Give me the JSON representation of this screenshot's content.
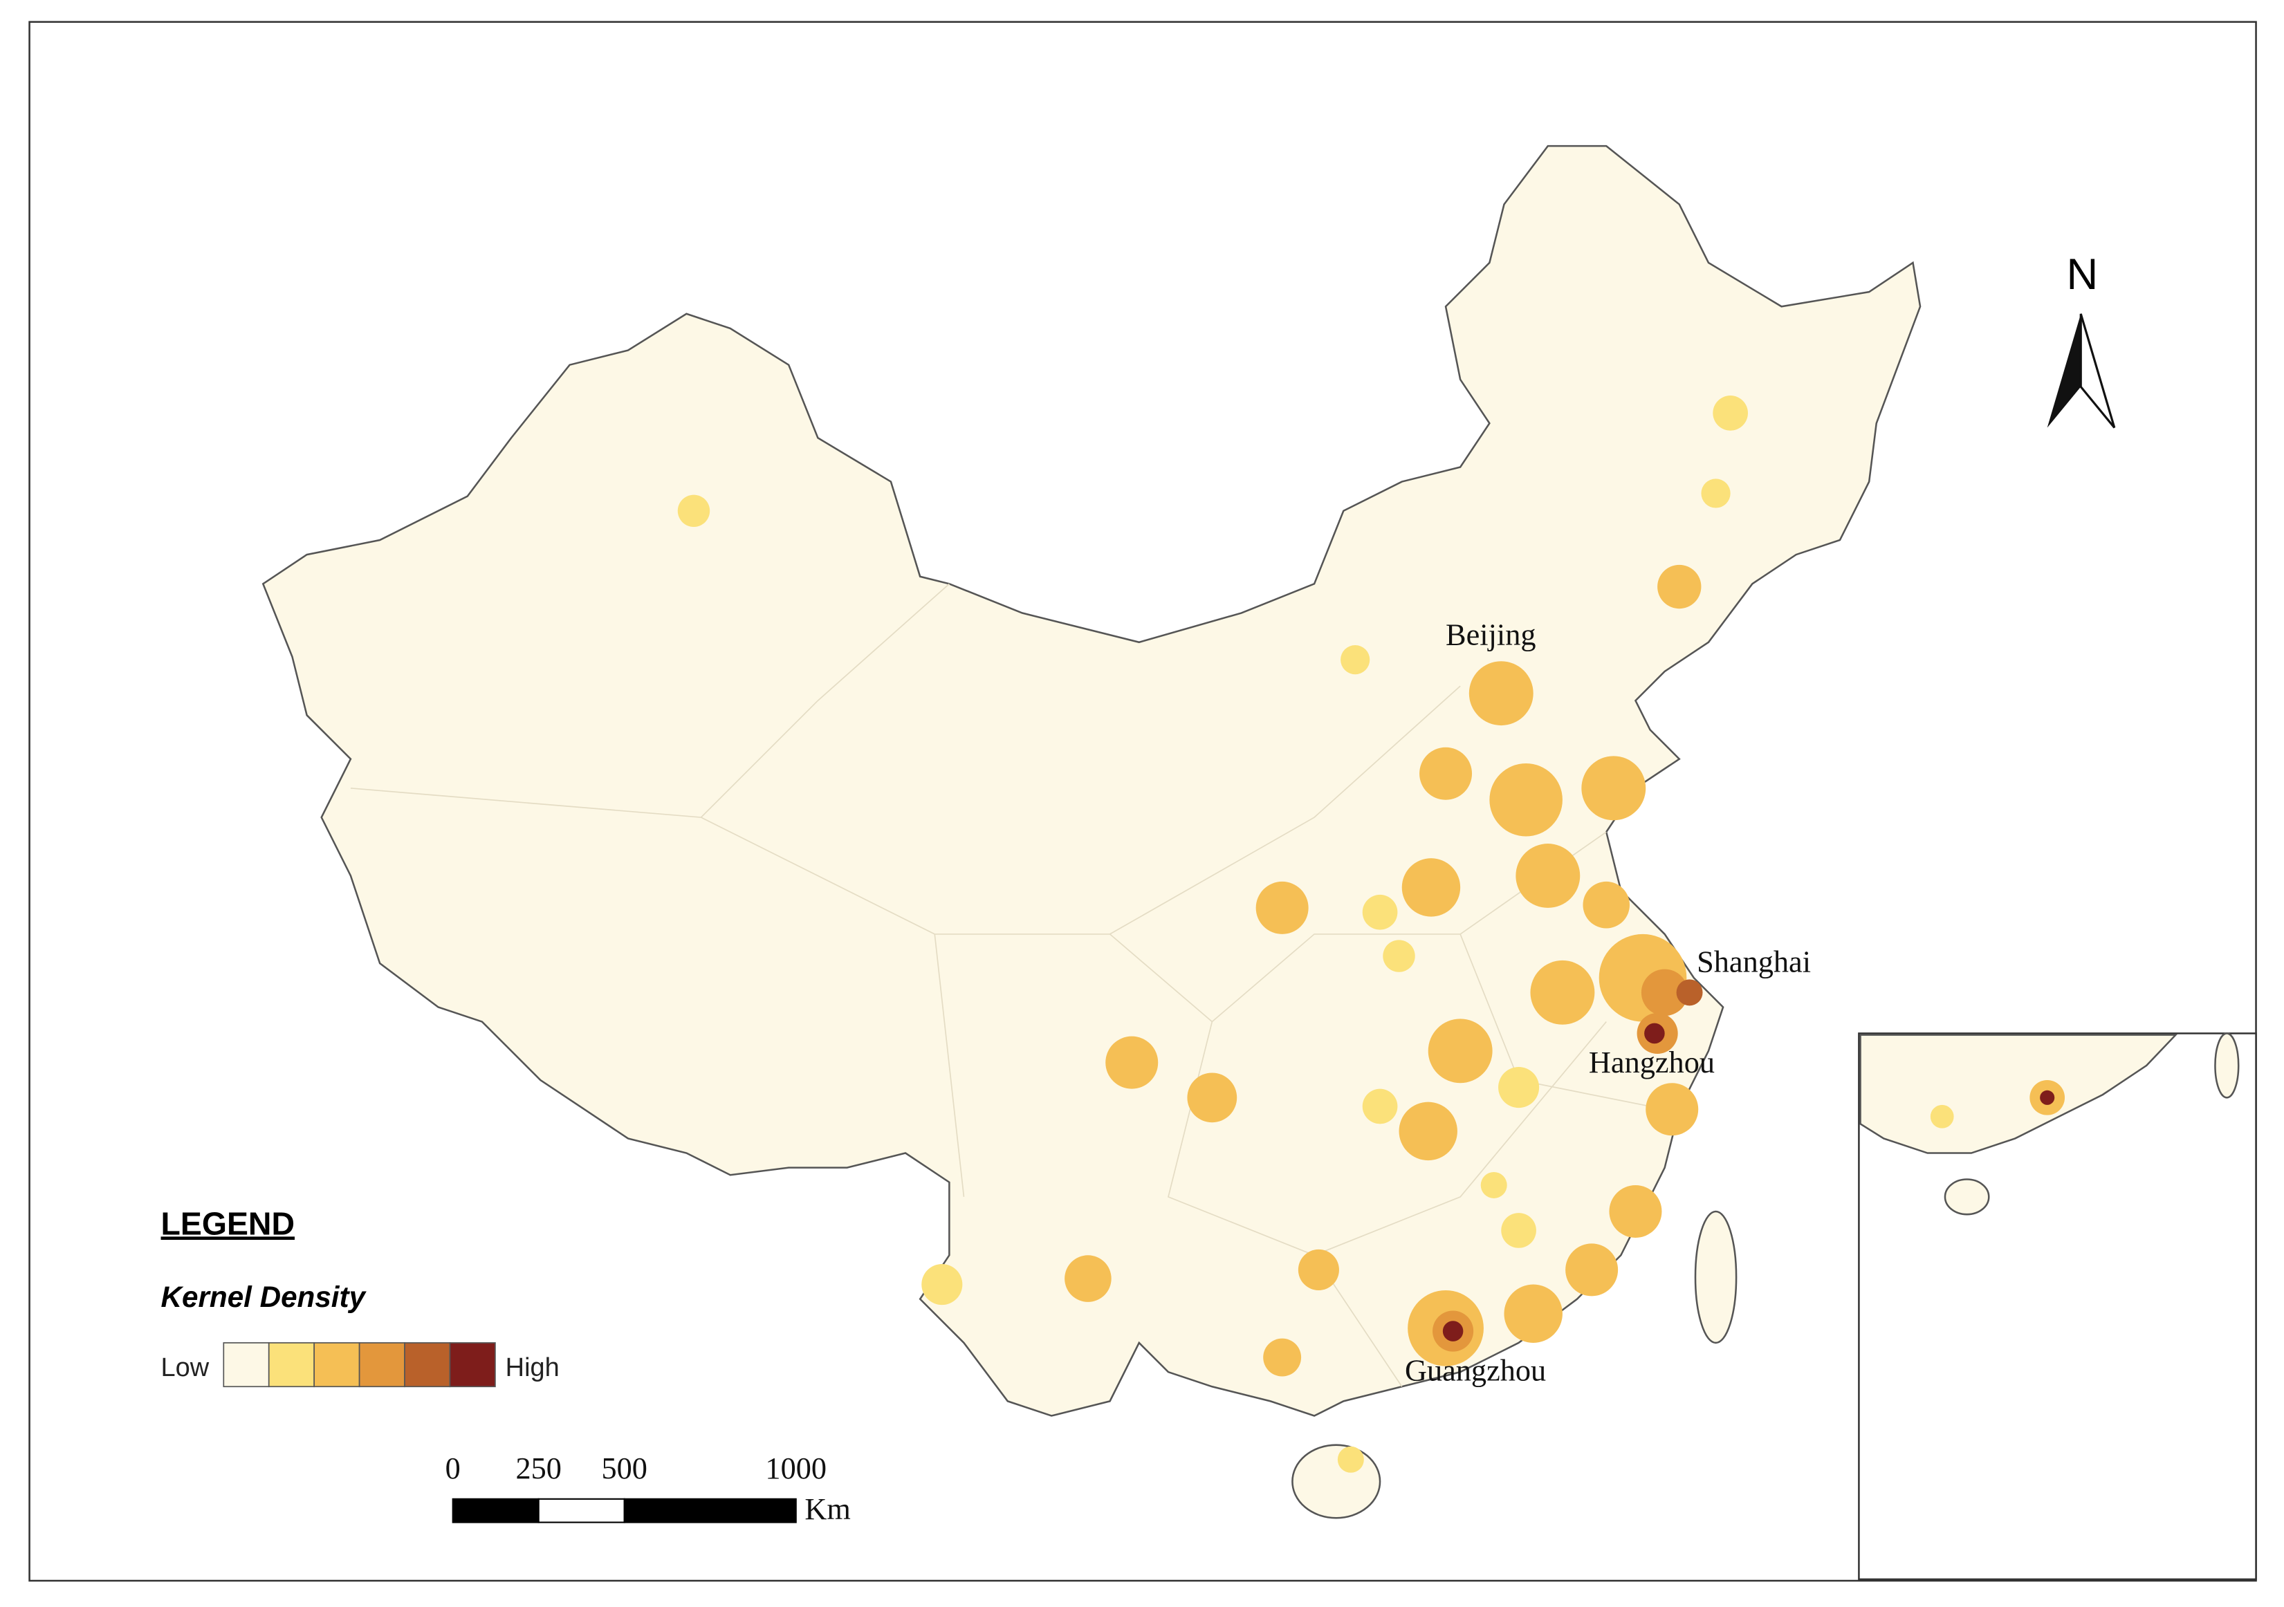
{
  "map": {
    "cities": [
      "Beijing",
      "Shanghai",
      "Hangzhou",
      "Guangzhou"
    ],
    "north": "N",
    "legend": {
      "title": "LEGEND",
      "subtitle": "Kernel Density",
      "low": "Low",
      "high": "High",
      "colors": [
        "#fdf8e6",
        "#fbe17a",
        "#f5bf55",
        "#e3973c",
        "#b9612a",
        "#7e1d1b"
      ]
    },
    "scale_bar": {
      "ticks": [
        0,
        250,
        500,
        1000
      ],
      "unit": "Km"
    }
  }
}
